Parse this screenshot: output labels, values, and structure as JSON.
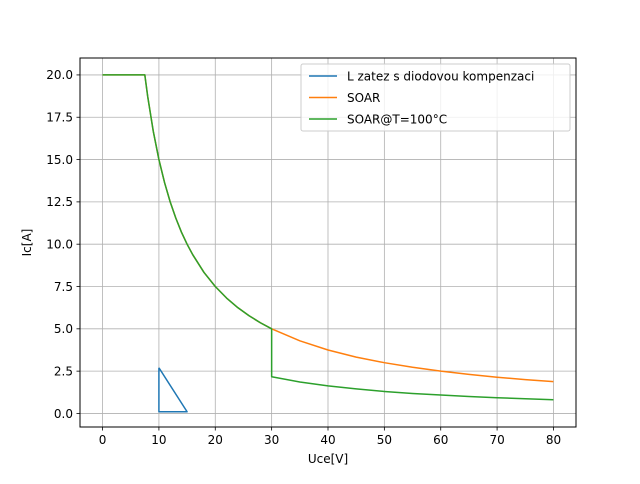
{
  "chart_data": {
    "type": "line",
    "xlabel": "Uce[V]",
    "ylabel": "Ic[A]",
    "xlim": [
      -4,
      84
    ],
    "ylim": [
      -0.8,
      21
    ],
    "xticks": [
      0,
      10,
      20,
      30,
      40,
      50,
      60,
      70,
      80
    ],
    "yticks": [
      0.0,
      2.5,
      5.0,
      7.5,
      10.0,
      12.5,
      15.0,
      17.5,
      20.0
    ],
    "xtick_labels": [
      "0",
      "10",
      "20",
      "30",
      "40",
      "50",
      "60",
      "70",
      "80"
    ],
    "ytick_labels": [
      "0.0",
      "2.5",
      "5.0",
      "7.5",
      "10.0",
      "12.5",
      "15.0",
      "17.5",
      "20.0"
    ],
    "grid": true,
    "legend_position": "top-right",
    "series": [
      {
        "name": "L zatez s diodovou kompenzaci",
        "color": "#1f77b4",
        "x": [
          10,
          10,
          15,
          10
        ],
        "y": [
          2.7,
          0.1,
          0.1,
          2.7
        ]
      },
      {
        "name": "SOAR",
        "color": "#ff7f0e",
        "x": [
          0,
          7.5,
          8,
          9,
          10,
          11,
          12,
          13,
          14,
          15,
          16,
          18,
          20,
          22,
          24,
          26,
          28,
          30,
          35,
          40,
          45,
          50,
          55,
          60,
          65,
          70,
          75,
          80
        ],
        "y": [
          20,
          20,
          18.75,
          16.67,
          15,
          13.64,
          12.5,
          11.54,
          10.71,
          10,
          9.38,
          8.33,
          7.5,
          6.82,
          6.25,
          5.77,
          5.36,
          5.0,
          4.29,
          3.75,
          3.33,
          3.0,
          2.73,
          2.5,
          2.31,
          2.14,
          2.0,
          1.88
        ]
      },
      {
        "name": "SOAR@T=100°C",
        "color": "#2ca02c",
        "x": [
          0,
          7.5,
          8,
          9,
          10,
          11,
          12,
          13,
          14,
          15,
          16,
          18,
          20,
          22,
          24,
          26,
          28,
          30,
          30,
          35,
          40,
          45,
          50,
          55,
          60,
          65,
          70,
          75,
          80
        ],
        "y": [
          20,
          20,
          18.75,
          16.67,
          15,
          13.64,
          12.5,
          11.54,
          10.71,
          10,
          9.38,
          8.33,
          7.5,
          6.82,
          6.25,
          5.77,
          5.36,
          5.0,
          2.17,
          1.86,
          1.63,
          1.45,
          1.3,
          1.18,
          1.09,
          1.0,
          0.93,
          0.87,
          0.81
        ]
      }
    ]
  }
}
